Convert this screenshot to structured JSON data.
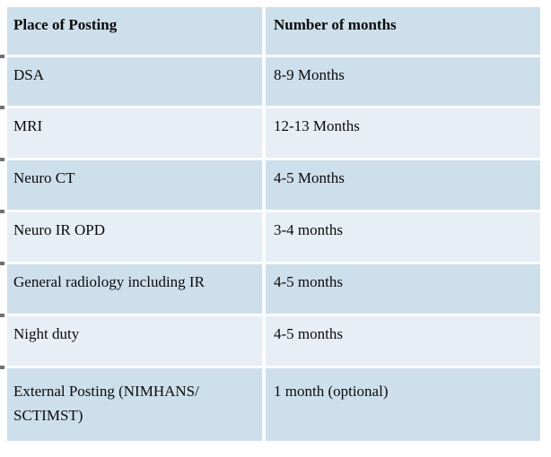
{
  "table": {
    "header": {
      "place": "Place of Posting",
      "months": "Number of months"
    },
    "rows": [
      {
        "place": "DSA",
        "months": "8-9 Months"
      },
      {
        "place": "MRI",
        "months": "12-13 Months"
      },
      {
        "place": "Neuro CT",
        "months": "4-5 Months"
      },
      {
        "place": "Neuro IR OPD",
        "months": "3-4 months"
      },
      {
        "place": "General radiology including IR",
        "months": "4-5 months"
      },
      {
        "place": "Night duty",
        "months": "4-5 months"
      },
      {
        "place": "External Posting (NIMHANS/ SCTIMST)",
        "months": "1 month (optional)"
      }
    ],
    "colors": {
      "band_dark": "#cddfeb",
      "band_light": "#e8eef6",
      "separator": "#fbfcfe",
      "text": "#0a0a0a",
      "tick": "#4b4e54"
    }
  }
}
